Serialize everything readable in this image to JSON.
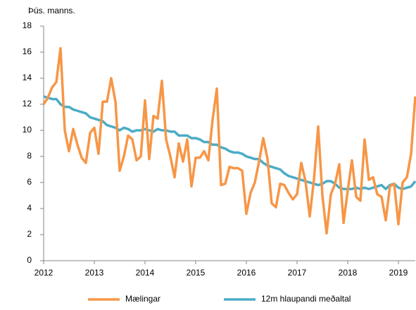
{
  "chart_data": {
    "type": "line",
    "y_label": "Þús. manns.",
    "x": [
      2012,
      2012.083,
      2012.167,
      2012.25,
      2012.333,
      2012.417,
      2012.5,
      2012.583,
      2012.667,
      2012.75,
      2012.833,
      2012.917,
      2013,
      2013.083,
      2013.167,
      2013.25,
      2013.333,
      2013.417,
      2013.5,
      2013.583,
      2013.667,
      2013.75,
      2013.833,
      2013.917,
      2014,
      2014.083,
      2014.167,
      2014.25,
      2014.333,
      2014.417,
      2014.5,
      2014.583,
      2014.667,
      2014.75,
      2014.833,
      2014.917,
      2015,
      2015.083,
      2015.167,
      2015.25,
      2015.333,
      2015.417,
      2015.5,
      2015.583,
      2015.667,
      2015.75,
      2015.833,
      2015.917,
      2016,
      2016.083,
      2016.167,
      2016.25,
      2016.333,
      2016.417,
      2016.5,
      2016.583,
      2016.667,
      2016.75,
      2016.833,
      2016.917,
      2017,
      2017.083,
      2017.167,
      2017.25,
      2017.333,
      2017.417,
      2017.5,
      2017.583,
      2017.667,
      2017.75,
      2017.833,
      2017.917,
      2018,
      2018.083,
      2018.167,
      2018.25,
      2018.333,
      2018.417,
      2018.5,
      2018.583,
      2018.667,
      2018.75,
      2018.833,
      2018.917,
      2019,
      2019.083,
      2019.167,
      2019.25,
      2019.333
    ],
    "series": [
      {
        "name": "Mælingar",
        "color": "#f79646",
        "values": [
          12.0,
          12.5,
          13.3,
          13.7,
          16.3,
          10.0,
          8.4,
          10.1,
          8.9,
          7.9,
          7.5,
          9.8,
          10.2,
          8.2,
          12.2,
          12.2,
          14.0,
          12.2,
          6.9,
          8.0,
          9.6,
          9.3,
          7.7,
          8.0,
          12.3,
          7.8,
          11.1,
          10.9,
          13.8,
          9.3,
          8.0,
          6.4,
          9.0,
          7.6,
          9.3,
          5.7,
          7.9,
          7.9,
          8.4,
          7.7,
          10.8,
          13.2,
          5.8,
          5.9,
          7.2,
          7.1,
          7.1,
          6.9,
          3.6,
          5.2,
          6.0,
          7.6,
          9.4,
          7.8,
          4.4,
          4.1,
          5.9,
          5.8,
          5.2,
          4.7,
          5.1,
          7.5,
          6.1,
          3.4,
          6.2,
          10.3,
          5.0,
          2.1,
          5.1,
          5.9,
          7.4,
          2.9,
          5.4,
          7.7,
          4.9,
          4.6,
          9.3,
          6.2,
          6.4,
          5.1,
          4.9,
          3.1,
          5.7,
          5.9,
          2.8,
          6.0,
          6.4,
          8.2,
          12.6
        ]
      },
      {
        "name": "12m hlaupandi meðaltal",
        "color": "#4bacc6",
        "values": [
          12.6,
          12.5,
          12.4,
          12.4,
          12.0,
          11.8,
          11.8,
          11.6,
          11.5,
          11.4,
          11.3,
          11.0,
          10.9,
          10.8,
          10.7,
          10.4,
          10.3,
          10.2,
          10.0,
          10.2,
          10.1,
          9.9,
          10.0,
          10.0,
          10.1,
          10.0,
          9.9,
          10.1,
          10.0,
          10.0,
          9.9,
          9.9,
          9.6,
          9.6,
          9.6,
          9.4,
          9.4,
          9.3,
          9.1,
          9.1,
          8.9,
          8.9,
          8.7,
          8.6,
          8.4,
          8.3,
          8.3,
          8.2,
          8.0,
          7.9,
          7.8,
          7.8,
          7.5,
          7.3,
          7.2,
          7.1,
          7.0,
          6.7,
          6.5,
          6.4,
          6.3,
          6.2,
          6.1,
          6.0,
          5.9,
          5.8,
          5.9,
          6.1,
          6.1,
          5.9,
          5.6,
          5.5,
          5.5,
          5.5,
          5.6,
          5.5,
          5.6,
          5.5,
          5.6,
          5.7,
          5.8,
          5.5,
          5.8,
          5.9,
          5.6,
          5.5,
          5.6,
          5.7,
          6.1
        ]
      }
    ],
    "xlim": [
      2012,
      2019.333
    ],
    "xticks": [
      2012,
      2013,
      2014,
      2015,
      2016,
      2017,
      2018,
      2019
    ],
    "ylim": [
      0,
      18
    ],
    "yticks": [
      0,
      2,
      4,
      6,
      8,
      10,
      12,
      14,
      16,
      18
    ],
    "grid": false,
    "legend": "bottom"
  }
}
